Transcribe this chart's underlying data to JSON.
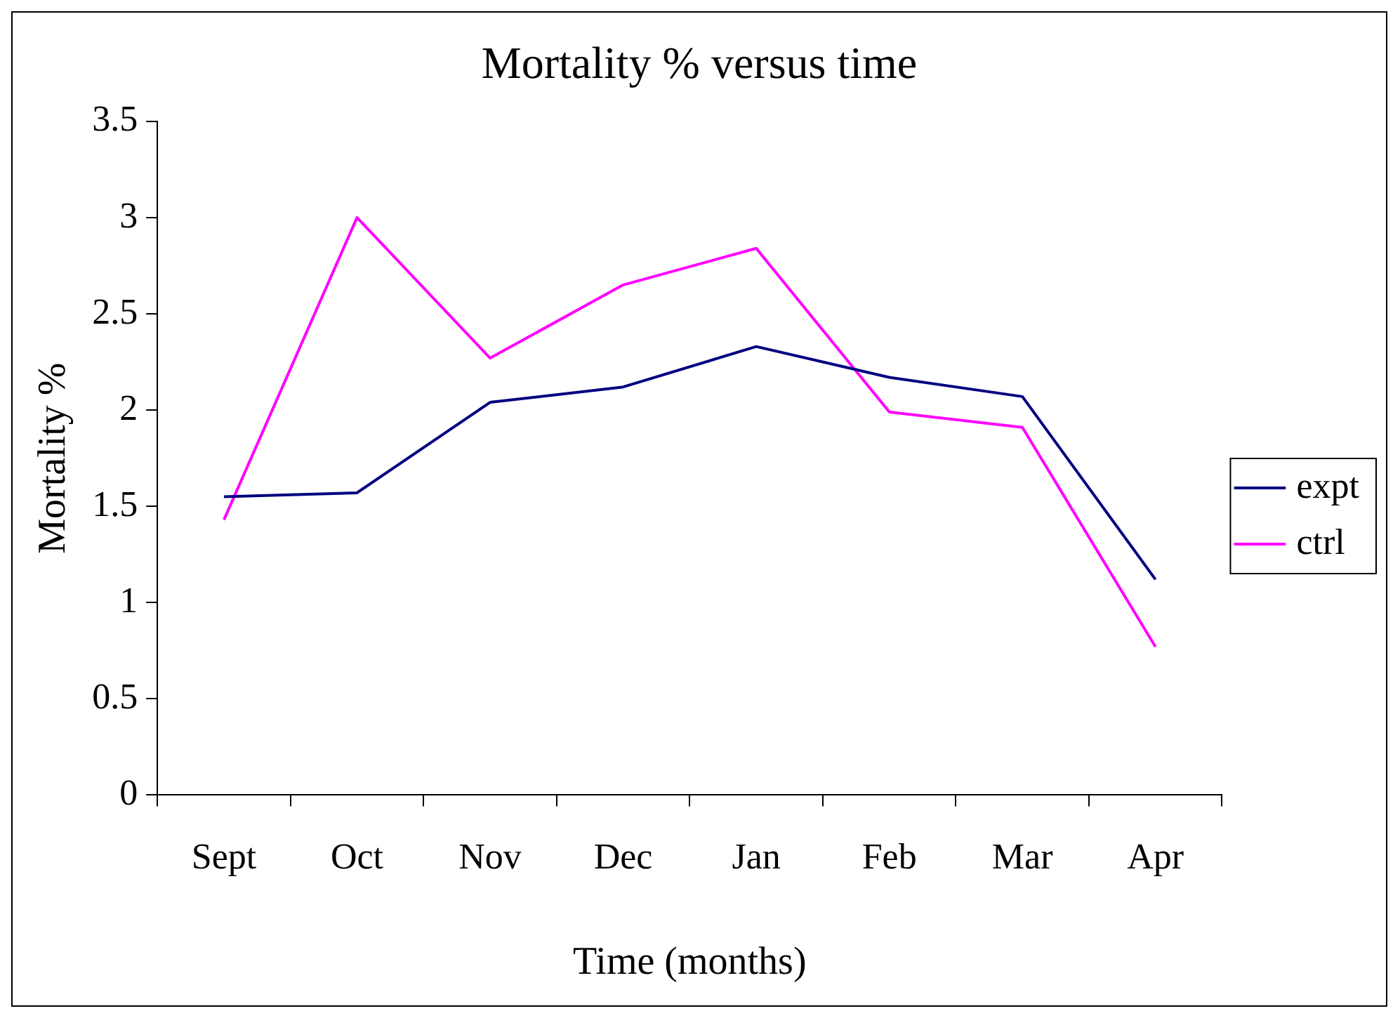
{
  "chart_data": {
    "type": "line",
    "title": "Mortality % versus time",
    "xlabel": "Time (months)",
    "ylabel": "Mortality %",
    "categories": [
      "Sept",
      "Oct",
      "Nov",
      "Dec",
      "Jan",
      "Feb",
      "Mar",
      "Apr"
    ],
    "series": [
      {
        "name": "expt",
        "color": "#000080",
        "values": [
          1.55,
          1.57,
          2.04,
          2.12,
          2.33,
          2.17,
          2.07,
          1.12
        ]
      },
      {
        "name": "ctrl",
        "color": "#ff00ff",
        "values": [
          1.43,
          3.0,
          2.27,
          2.65,
          2.84,
          1.99,
          1.91,
          0.77
        ]
      }
    ],
    "ylim": [
      0,
      3.5
    ],
    "yticks": [
      0,
      0.5,
      1,
      1.5,
      2,
      2.5,
      3,
      3.5
    ],
    "grid": false,
    "legend": "right",
    "marker": "none",
    "line_style": "solid"
  }
}
